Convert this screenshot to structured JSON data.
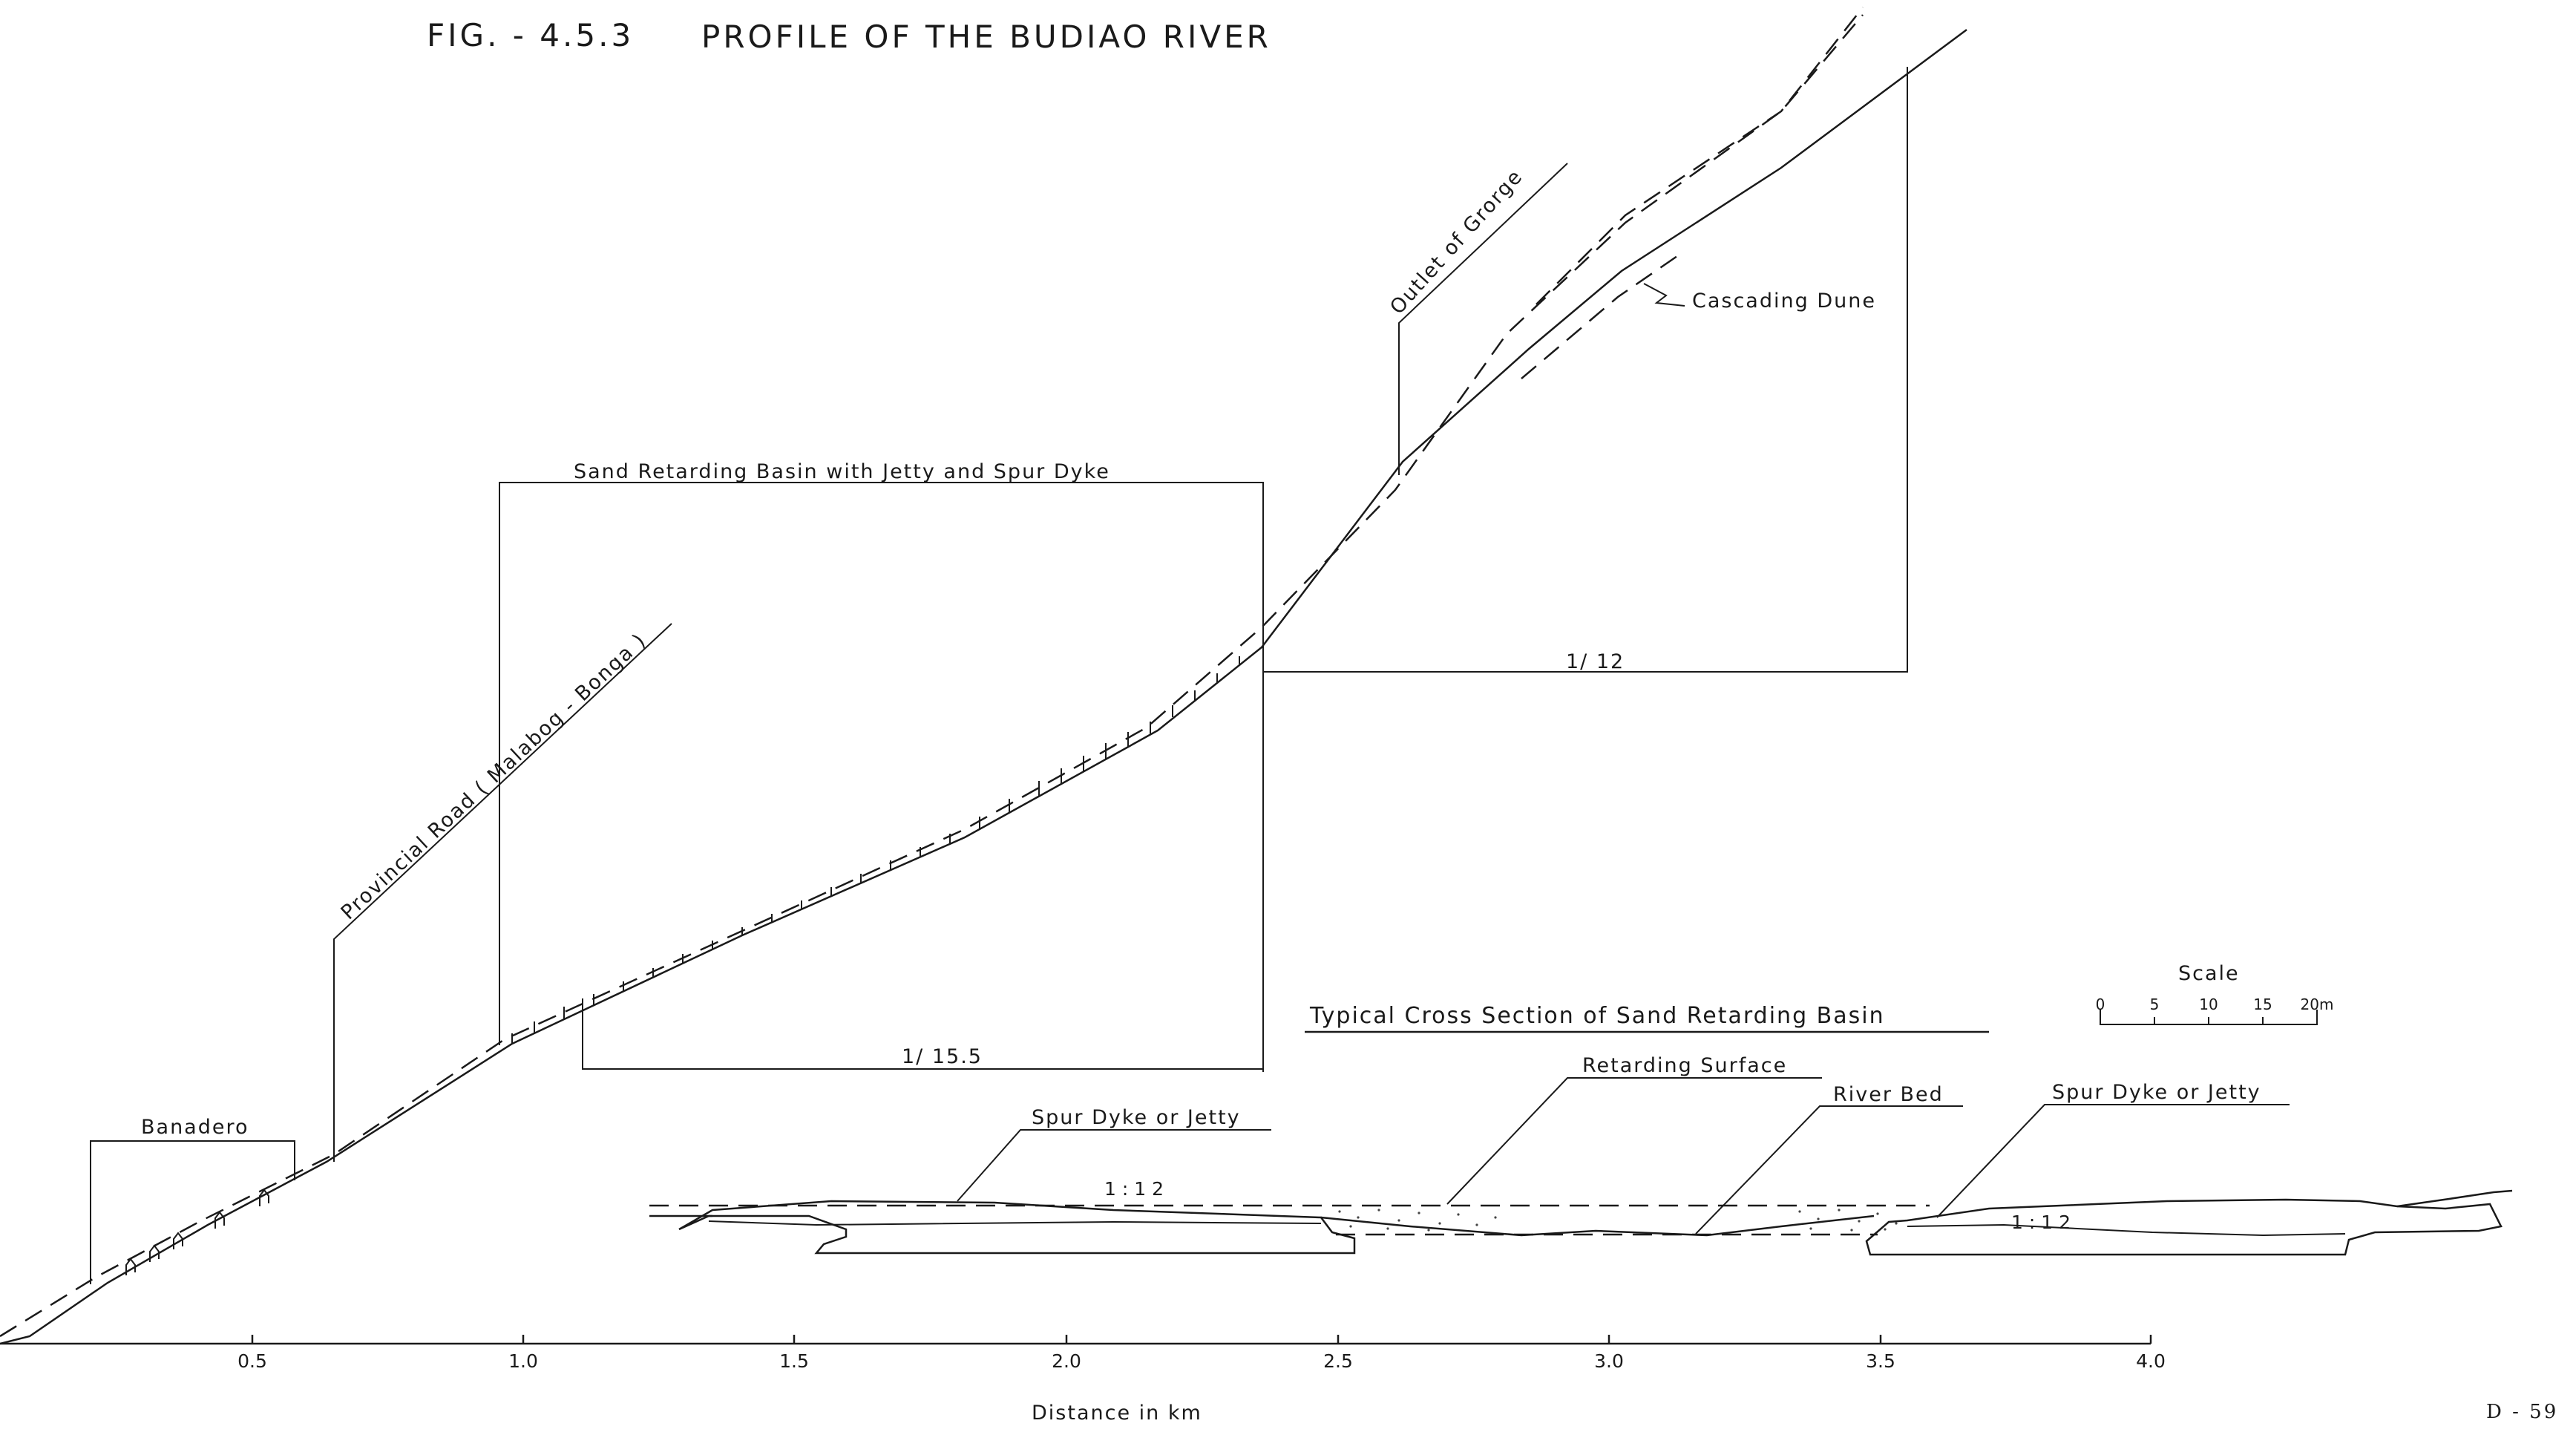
{
  "figure": {
    "number": "FIG. - 4.5.3",
    "title": "PROFILE  OF  THE  BUDIAO  RIVER"
  },
  "profile": {
    "annotations": {
      "outlet_of_gorge": "Outlet  of  Grorge",
      "cascading_dune": "Cascading  Dune",
      "sand_retarding_basin": "Sand  Retarding  Basin  with  Jetty  and  Spur  Dyke",
      "provincial_road": "Provincial  Road  ( Malabog - Bonga )",
      "banadero": "Banadero",
      "slope_upper": "1/ 12",
      "slope_lower": "1/ 15.5"
    },
    "x_axis": {
      "label": "Distance   in  km",
      "ticks": [
        "0.5",
        "1.0",
        "1.5",
        "2.0",
        "2.5",
        "3.0",
        "3.5",
        "4.0"
      ]
    }
  },
  "cross_section": {
    "title": "Typical  Cross  Section  of  Sand  Retarding  Basin",
    "labels": {
      "retarding_surface": "Retarding  Surface",
      "river_bed": "River  Bed",
      "spur_dyke_left": "Spur  Dyke  or  Jetty",
      "spur_dyke_right": "Spur  Dyke  or  Jetty",
      "slope_left": "1 : 1 2",
      "slope_right": "1 : 1 2"
    }
  },
  "scale_bar": {
    "title": "Scale",
    "ticks": [
      "0",
      "5",
      "10",
      "15",
      "20m"
    ]
  },
  "page_number": "D - 59"
}
